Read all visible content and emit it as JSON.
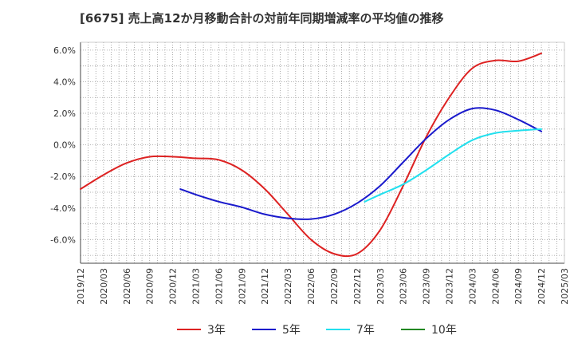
{
  "chart_data": {
    "type": "line",
    "title": "[6675]  売上高12か月移動合計の対前年同期増減率の平均値の推移",
    "ylim": [
      -7.5,
      6.5
    ],
    "yticks": [
      6.0,
      4.0,
      2.0,
      0.0,
      -2.0,
      -4.0,
      -6.0
    ],
    "ytick_labels": [
      "6.0%",
      "4.0%",
      "2.0%",
      "0.0%",
      "-2.0%",
      "-4.0%",
      "-6.0%"
    ],
    "x_start": "2019/12",
    "x_end": "2025/03",
    "x_tick_labels": [
      "2019/12",
      "2020/03",
      "2020/06",
      "2020/09",
      "2020/12",
      "2021/03",
      "2021/06",
      "2021/09",
      "2021/12",
      "2022/03",
      "2022/06",
      "2022/09",
      "2022/12",
      "2023/03",
      "2023/06",
      "2023/09",
      "2023/12",
      "2024/03",
      "2024/06",
      "2024/09",
      "2024/12",
      "2025/03"
    ],
    "grid": true,
    "legend_position": "bottom",
    "series": [
      {
        "name": "3年",
        "color": "#dd2222",
        "x": [
          "2019/12",
          "2020/03",
          "2020/06",
          "2020/09",
          "2020/12",
          "2021/03",
          "2021/06",
          "2021/09",
          "2021/12",
          "2022/03",
          "2022/06",
          "2022/09",
          "2022/12",
          "2023/03",
          "2023/06",
          "2023/09",
          "2023/12",
          "2024/03",
          "2024/06",
          "2024/09",
          "2024/12"
        ],
        "values": [
          -2.8,
          -1.9,
          -1.15,
          -0.75,
          -0.75,
          -0.85,
          -0.95,
          -1.6,
          -2.8,
          -4.4,
          -6.0,
          -6.9,
          -6.9,
          -5.4,
          -2.6,
          0.5,
          3.0,
          4.85,
          5.35,
          5.3,
          5.8
        ]
      },
      {
        "name": "5年",
        "color": "#1a1acc",
        "x": [
          "2021/01",
          "2021/03",
          "2021/06",
          "2021/09",
          "2021/12",
          "2022/03",
          "2022/06",
          "2022/09",
          "2022/12",
          "2023/03",
          "2023/06",
          "2023/09",
          "2023/12",
          "2024/03",
          "2024/06",
          "2024/09",
          "2024/12"
        ],
        "values": [
          -2.8,
          -3.15,
          -3.6,
          -3.95,
          -4.4,
          -4.65,
          -4.7,
          -4.4,
          -3.7,
          -2.6,
          -1.1,
          0.4,
          1.6,
          2.3,
          2.2,
          1.6,
          0.85
        ]
      },
      {
        "name": "7年",
        "color": "#22e0ee",
        "x": [
          "2023/01",
          "2023/03",
          "2023/06",
          "2023/09",
          "2023/12",
          "2024/03",
          "2024/06",
          "2024/09",
          "2024/12"
        ],
        "values": [
          -3.6,
          -3.15,
          -2.5,
          -1.6,
          -0.6,
          0.3,
          0.75,
          0.9,
          1.0
        ]
      },
      {
        "name": "10年",
        "color": "#228822",
        "x": [],
        "values": []
      }
    ]
  }
}
